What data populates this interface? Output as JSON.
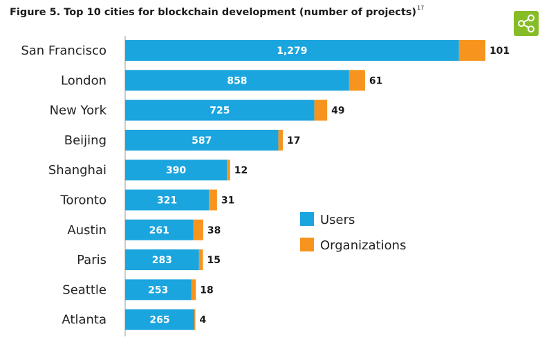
{
  "title": "Figure 5. Top 10 cities for blockchain development (number of projects)",
  "title_footnote": "17",
  "share_icon": "share-icon",
  "colors": {
    "users": "#1ba5de",
    "organizations": "#f7941d",
    "share_bg": "#86bc25"
  },
  "chart_data": {
    "type": "bar",
    "orientation": "horizontal",
    "stacked": true,
    "categories": [
      "San Francisco",
      "London",
      "New York",
      "Beijing",
      "Shanghai",
      "Toronto",
      "Austin",
      "Paris",
      "Seattle",
      "Atlanta"
    ],
    "series": [
      {
        "name": "Users",
        "values": [
          1279,
          858,
          725,
          587,
          390,
          321,
          261,
          283,
          253,
          265
        ]
      },
      {
        "name": "Organizations",
        "values": [
          101,
          61,
          49,
          17,
          12,
          31,
          38,
          15,
          18,
          4
        ]
      }
    ],
    "xlim": [
      0,
      1400
    ],
    "legend_position": "right-middle",
    "grid": false
  }
}
